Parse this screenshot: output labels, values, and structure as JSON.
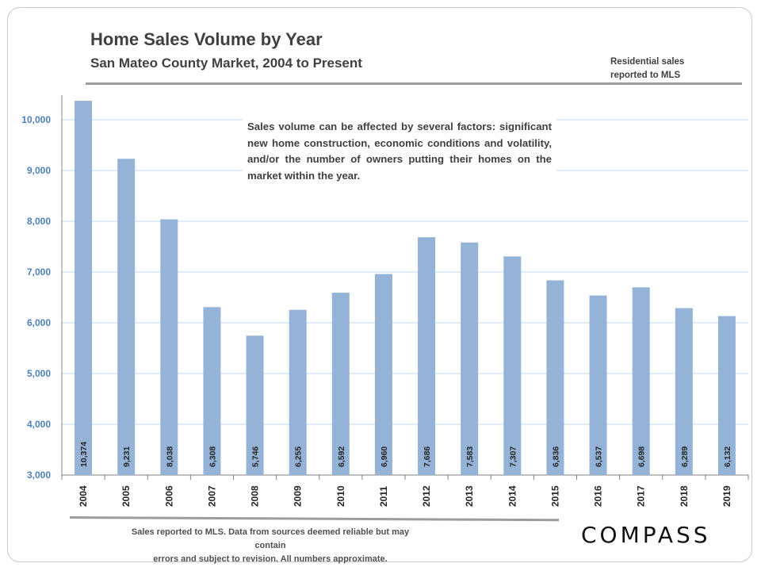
{
  "header": {
    "title": "Home Sales Volume by Year",
    "subtitle": "San Mateo County Market,  2004 to Present",
    "note_line1": "Residential sales",
    "note_line2": "reported to MLS"
  },
  "callout": {
    "text": "Sales volume can be affected by several factors: significant new home construction, economic conditions and volatility, and/or the number of owners putting their homes on the market within the year."
  },
  "footer": {
    "line1": "Sales reported to MLS. Data from sources deemed reliable but may contain",
    "line2": "errors and subject to revision. All numbers approximate."
  },
  "brand": {
    "logo_text": "COMPASS"
  },
  "colors": {
    "bar": "#95b3d7",
    "gridline": "#c6d9ec",
    "ytick": "#4f81bd",
    "axis": "#808080",
    "text": "#404040"
  },
  "chart_data": {
    "type": "bar",
    "title": "Home Sales Volume by Year",
    "subtitle": "San Mateo County Market,  2004 to Present",
    "xlabel": "",
    "ylabel": "",
    "categories": [
      "2004",
      "2005",
      "2006",
      "2007",
      "2008",
      "2009",
      "2010",
      "2011",
      "2012",
      "2013",
      "2014",
      "2015",
      "2016",
      "2017",
      "2018",
      "2019"
    ],
    "values": [
      10374,
      9231,
      8038,
      6308,
      5746,
      6255,
      6592,
      6960,
      7686,
      7583,
      7307,
      6836,
      6537,
      6698,
      6289,
      6132
    ],
    "data_labels": [
      "10,374",
      "9,231",
      "8,038",
      "6,308",
      "5,746",
      "6,255",
      "6,592",
      "6,960",
      "7,686",
      "7,583",
      "7,307",
      "6,836",
      "6,537",
      "6,698",
      "6,289",
      "6,132"
    ],
    "ylim": [
      3000,
      10500
    ],
    "yticks": [
      3000,
      4000,
      5000,
      6000,
      7000,
      8000,
      9000,
      10000
    ],
    "ytick_labels": [
      "3,000",
      "4,000",
      "5,000",
      "6,000",
      "7,000",
      "8,000",
      "9,000",
      "10,000"
    ],
    "grid": true,
    "legend": "none"
  }
}
